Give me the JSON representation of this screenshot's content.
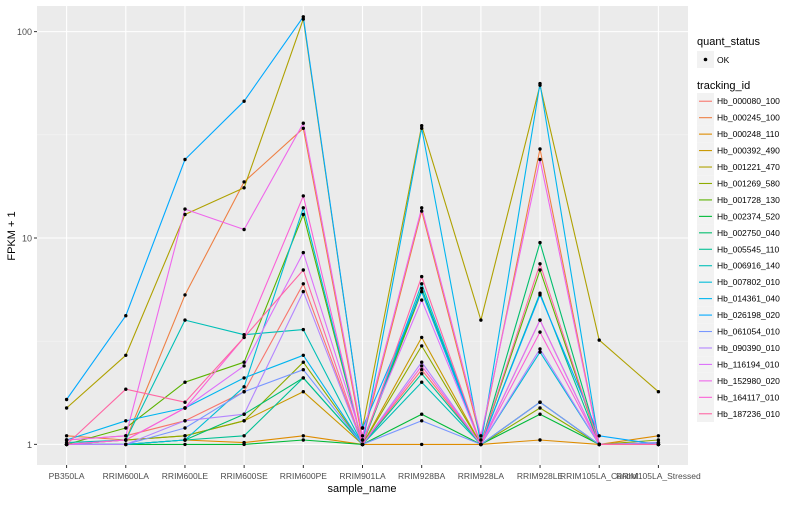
{
  "chart_data": {
    "type": "line",
    "x_label": "sample_name",
    "y_label": "FPKM + 1",
    "y_scale": "log10",
    "y_ticks": [
      1,
      10,
      100
    ],
    "grid": true,
    "legend_position": "right",
    "categories": [
      "PB350LA",
      "RRIM600LA",
      "RRIM600LE",
      "RRIM600SE",
      "RRIM600PE",
      "RRIM901LA",
      "RRIM928BA",
      "RRIM928LA",
      "RRIM928LE",
      "RRIM105LA_Control",
      "RRIM105LA_Stressed"
    ],
    "legend": {
      "shape_title": "quant_status",
      "shape_entries": [
        "OK"
      ],
      "color_title": "tracking_id"
    },
    "series": [
      {
        "name": "Hb_000080_100",
        "color": "#F8766D",
        "values": [
          1.05,
          1.1,
          1.3,
          1.8,
          6.0,
          1.0,
          2.3,
          1.0,
          4.0,
          1.0,
          1.02
        ]
      },
      {
        "name": "Hb_000245_100",
        "color": "#EE8044",
        "values": [
          1.1,
          1.05,
          5.3,
          18.7,
          34.0,
          1.05,
          13.5,
          1.05,
          27.0,
          1.0,
          1.0
        ]
      },
      {
        "name": "Hb_000248_110",
        "color": "#DE8C00",
        "values": [
          1.0,
          1.0,
          1.05,
          1.02,
          1.1,
          1.0,
          1.0,
          1.0,
          1.05,
          1.0,
          1.1
        ]
      },
      {
        "name": "Hb_000392_490",
        "color": "#C99800",
        "values": [
          1.0,
          1.05,
          1.1,
          1.3,
          1.8,
          1.0,
          3.3,
          1.0,
          1.6,
          1.0,
          1.0
        ]
      },
      {
        "name": "Hb_001221_470",
        "color": "#AFA100",
        "values": [
          1.5,
          2.7,
          13.0,
          17.5,
          115.0,
          1.2,
          35.0,
          4.0,
          55.0,
          3.2,
          1.8
        ]
      },
      {
        "name": "Hb_001269_580",
        "color": "#8EAB00",
        "values": [
          1.0,
          1.05,
          1.1,
          1.3,
          2.5,
          1.0,
          3.0,
          1.0,
          1.5,
          1.0,
          1.05
        ]
      },
      {
        "name": "Hb_001728_130",
        "color": "#5BB300",
        "values": [
          1.0,
          1.2,
          2.0,
          2.5,
          13.0,
          1.0,
          5.5,
          1.0,
          7.0,
          1.0,
          1.0
        ]
      },
      {
        "name": "Hb_002374_520",
        "color": "#00BA38",
        "values": [
          1.0,
          1.0,
          1.0,
          1.0,
          1.05,
          1.0,
          1.4,
          1.0,
          1.4,
          1.0,
          1.0
        ]
      },
      {
        "name": "Hb_002750_040",
        "color": "#00BE6C",
        "values": [
          1.0,
          1.0,
          1.05,
          1.4,
          2.1,
          1.0,
          5.7,
          1.0,
          9.5,
          1.0,
          1.0
        ]
      },
      {
        "name": "Hb_005545_110",
        "color": "#00C094",
        "values": [
          1.0,
          1.0,
          1.05,
          1.1,
          2.1,
          1.0,
          2.2,
          1.0,
          5.4,
          1.0,
          1.0
        ]
      },
      {
        "name": "Hb_006916_140",
        "color": "#00BFB7",
        "values": [
          1.02,
          1.05,
          4.0,
          3.4,
          3.6,
          1.0,
          2.0,
          1.0,
          1.6,
          1.0,
          1.0
        ]
      },
      {
        "name": "Hb_007802_010",
        "color": "#00BCD8",
        "values": [
          1.0,
          1.0,
          1.05,
          1.9,
          14.0,
          1.0,
          6.0,
          1.0,
          2.8,
          1.0,
          1.0
        ]
      },
      {
        "name": "Hb_014361_040",
        "color": "#00B5EF",
        "values": [
          1.05,
          1.3,
          1.5,
          2.1,
          2.7,
          1.0,
          34.0,
          1.0,
          56.0,
          1.0,
          1.0
        ]
      },
      {
        "name": "Hb_026198_020",
        "color": "#00A9FF",
        "values": [
          1.65,
          4.2,
          24.0,
          46.0,
          118.0,
          1.2,
          5.5,
          1.0,
          5.3,
          1.1,
          1.0
        ]
      },
      {
        "name": "Hb_061054_010",
        "color": "#7997FF",
        "values": [
          1.0,
          1.0,
          1.2,
          1.8,
          2.3,
          1.0,
          1.3,
          1.0,
          1.6,
          1.0,
          1.02
        ]
      },
      {
        "name": "Hb_090390_010",
        "color": "#B385FF",
        "values": [
          1.0,
          1.0,
          1.3,
          1.4,
          5.5,
          1.0,
          2.5,
          1.0,
          2.9,
          1.0,
          1.0
        ]
      },
      {
        "name": "Hb_116194_010",
        "color": "#DC71FA",
        "values": [
          1.0,
          1.05,
          1.5,
          2.4,
          8.5,
          1.05,
          5.0,
          1.0,
          4.0,
          1.0,
          1.0
        ]
      },
      {
        "name": "Hb_152980_020",
        "color": "#EF67EB",
        "values": [
          1.05,
          1.1,
          13.8,
          11.0,
          36.0,
          1.1,
          14.0,
          1.1,
          24.0,
          1.0,
          1.0
        ]
      },
      {
        "name": "Hb_164117_010",
        "color": "#FB61D7",
        "values": [
          1.0,
          1.05,
          1.5,
          3.3,
          16.0,
          1.0,
          2.4,
          1.0,
          3.5,
          1.0,
          1.0
        ]
      },
      {
        "name": "Hb_187236_010",
        "color": "#FF67A4",
        "values": [
          1.0,
          1.85,
          1.6,
          3.3,
          7.0,
          1.0,
          6.5,
          1.0,
          7.5,
          1.0,
          1.0
        ]
      }
    ]
  }
}
